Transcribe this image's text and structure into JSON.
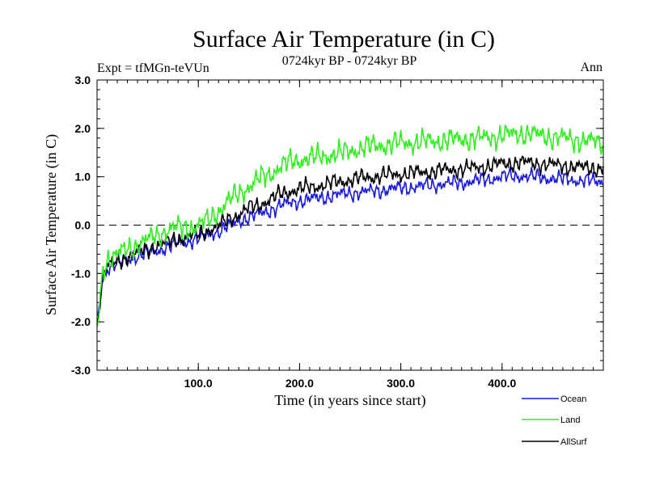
{
  "chart_data": {
    "type": "line",
    "title": "Surface Air Temperature (in C)",
    "subtitle": "0724kyr BP - 0724kyr BP",
    "expt_label": "Expt = tfMGn-teVUn",
    "season_label": "Ann",
    "xlabel": "Time (in years since start)",
    "ylabel": "Surface Air Temperature (in C)",
    "xlim": [
      0,
      500
    ],
    "ylim": [
      -3.0,
      3.0
    ],
    "xticks": [
      100,
      200,
      300,
      400
    ],
    "xtick_labels": [
      "100.0",
      "200.0",
      "300.0",
      "400.0"
    ],
    "yticks": [
      -3,
      -2,
      -1,
      0,
      1,
      2,
      3
    ],
    "ytick_labels": [
      "-3.0",
      "-2.0",
      "-1.0",
      "0.0",
      "1.0",
      "2.0",
      "3.0"
    ],
    "zero_line": 0,
    "grid": false,
    "legend_position": "bottom-right",
    "series": [
      {
        "name": "Ocean",
        "color": "#1a1adf",
        "x": [
          0,
          3,
          6,
          10,
          15,
          20,
          30,
          40,
          50,
          60,
          70,
          80,
          90,
          100,
          110,
          120,
          130,
          140,
          150,
          160,
          170,
          180,
          190,
          200,
          215,
          230,
          245,
          260,
          280,
          300,
          320,
          340,
          360,
          380,
          400,
          420,
          440,
          460,
          480,
          500
        ],
        "values": [
          -2.0,
          -1.5,
          -1.1,
          -0.9,
          -0.85,
          -0.8,
          -0.72,
          -0.65,
          -0.58,
          -0.52,
          -0.45,
          -0.38,
          -0.33,
          -0.28,
          -0.2,
          -0.12,
          -0.02,
          0.08,
          0.17,
          0.22,
          0.3,
          0.4,
          0.45,
          0.5,
          0.55,
          0.6,
          0.65,
          0.68,
          0.72,
          0.77,
          0.8,
          0.85,
          0.88,
          0.93,
          1.0,
          1.02,
          0.98,
          0.95,
          0.92,
          0.9
        ]
      },
      {
        "name": "Land",
        "color": "#33ee22",
        "x": [
          0,
          3,
          6,
          10,
          15,
          20,
          30,
          40,
          50,
          60,
          70,
          80,
          90,
          100,
          110,
          120,
          130,
          140,
          150,
          160,
          170,
          180,
          190,
          200,
          215,
          230,
          245,
          260,
          280,
          300,
          320,
          340,
          360,
          380,
          400,
          420,
          440,
          460,
          480,
          500
        ],
        "values": [
          -2.2,
          -1.5,
          -0.9,
          -0.7,
          -0.68,
          -0.6,
          -0.5,
          -0.4,
          -0.3,
          -0.2,
          -0.1,
          -0.05,
          -0.05,
          0.0,
          0.1,
          0.3,
          0.5,
          0.65,
          0.8,
          0.95,
          1.05,
          1.2,
          1.3,
          1.35,
          1.4,
          1.45,
          1.5,
          1.6,
          1.65,
          1.7,
          1.72,
          1.75,
          1.78,
          1.8,
          1.85,
          1.9,
          1.85,
          1.8,
          1.75,
          1.7
        ]
      },
      {
        "name": "AllSurf",
        "color": "#000000",
        "x": [
          0,
          3,
          6,
          10,
          15,
          20,
          30,
          40,
          50,
          60,
          70,
          80,
          90,
          100,
          110,
          120,
          130,
          140,
          150,
          160,
          170,
          180,
          190,
          200,
          215,
          230,
          245,
          260,
          280,
          300,
          320,
          340,
          360,
          380,
          400,
          420,
          440,
          460,
          480,
          500
        ],
        "values": [
          -2.05,
          -1.5,
          -1.05,
          -0.85,
          -0.8,
          -0.75,
          -0.65,
          -0.57,
          -0.49,
          -0.42,
          -0.35,
          -0.28,
          -0.24,
          -0.19,
          -0.11,
          -0.01,
          0.12,
          0.23,
          0.35,
          0.42,
          0.52,
          0.63,
          0.7,
          0.75,
          0.8,
          0.86,
          0.92,
          0.97,
          1.02,
          1.06,
          1.09,
          1.13,
          1.16,
          1.2,
          1.27,
          1.3,
          1.26,
          1.23,
          1.19,
          1.17
        ]
      }
    ]
  }
}
